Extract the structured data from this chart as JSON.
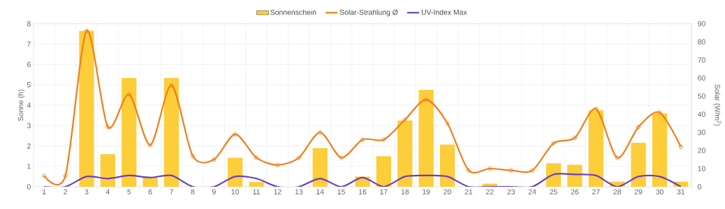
{
  "chart_data": {
    "type": "bar",
    "categories": [
      "1",
      "2",
      "3",
      "4",
      "5",
      "6",
      "7",
      "8",
      "9",
      "10",
      "11",
      "12",
      "13",
      "14",
      "15",
      "16",
      "17",
      "18",
      "19",
      "20",
      "21",
      "22",
      "23",
      "24",
      "25",
      "26",
      "27",
      "28",
      "29",
      "30",
      "31"
    ],
    "ylabel": "Sonne (h)",
    "y2label": "Solar (W/m$^{2}$)",
    "ylim": [
      0,
      8
    ],
    "yticks": [
      0,
      1,
      2,
      3,
      4,
      5,
      6,
      7,
      8
    ],
    "y2lim": [
      0,
      90
    ],
    "y2ticks": [
      0,
      10,
      20,
      30,
      40,
      50,
      60,
      70,
      80,
      90
    ],
    "grid": true,
    "legend": "top",
    "series": [
      {
        "name": "Sonnenschein",
        "color": "#fdcd3a",
        "values": [
          0,
          0,
          7.65,
          1.6,
          5.33,
          0.45,
          5.33,
          0,
          0,
          1.42,
          0.23,
          0,
          0,
          1.9,
          0,
          0.5,
          1.5,
          3.25,
          4.75,
          2.07,
          0,
          0.15,
          0,
          0,
          1.15,
          1.08,
          3.75,
          0.25,
          2.15,
          3.6,
          0.25
        ]
      },
      {
        "name": "Solar-Strahlung Ø",
        "type": "line",
        "axis": "y2",
        "color": "#f47d16",
        "marker": "circle",
        "values": [
          6,
          6,
          86,
          33,
          51,
          23,
          56,
          17,
          15,
          29,
          16,
          12,
          16,
          30,
          16,
          26,
          26,
          37,
          48,
          35,
          9,
          10,
          9,
          9,
          24,
          27,
          43,
          16,
          33,
          41,
          22
        ]
      },
      {
        "name": "UV-Index Max",
        "type": "line",
        "color": "#6a3fbf",
        "marker": "none",
        "values": [
          0,
          0,
          0.5,
          0.4,
          0.55,
          0.45,
          0.55,
          0,
          0,
          0.5,
          0.4,
          0,
          0,
          0.4,
          0,
          0.45,
          0,
          0.5,
          0.55,
          0.5,
          0,
          0,
          0,
          0,
          0.6,
          0.6,
          0.55,
          0,
          0.5,
          0.5,
          0
        ]
      }
    ]
  }
}
